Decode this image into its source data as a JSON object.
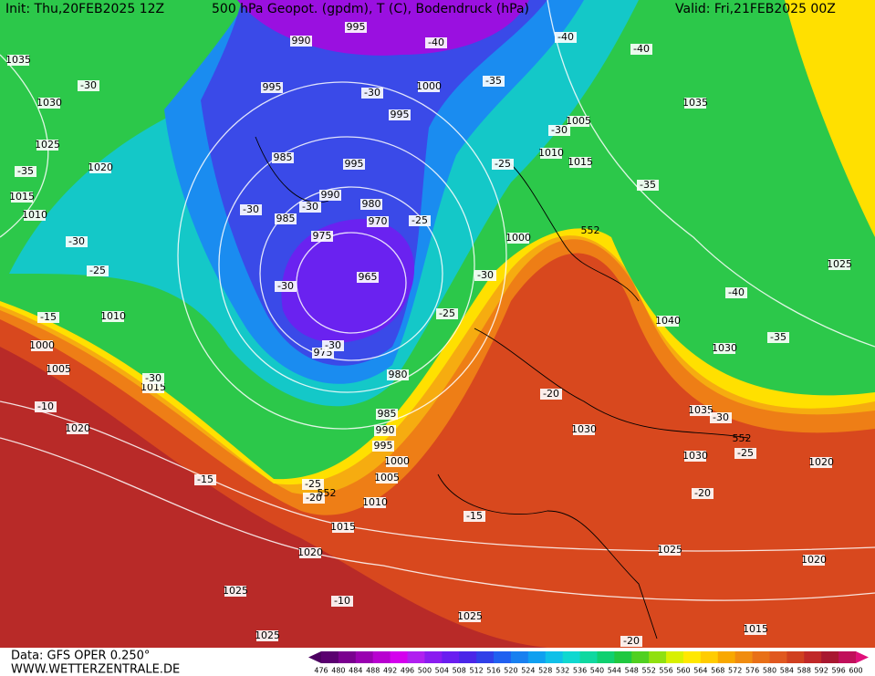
{
  "header": {
    "init": "Init: Thu,20FEB2025 12Z",
    "title": "500 hPa Geopot. (gpdm), T (C), Bodendruck (hPa)",
    "valid": "Valid: Fri,21FEB2025 00Z"
  },
  "footer": {
    "data": "Data: GFS OPER 0.250°",
    "site": "WWW.WETTERZENTRALE.DE"
  },
  "colorbar": {
    "ticks": [
      476,
      480,
      484,
      488,
      492,
      496,
      500,
      504,
      508,
      512,
      516,
      520,
      524,
      528,
      532,
      536,
      540,
      544,
      548,
      552,
      556,
      560,
      564,
      568,
      572,
      576,
      580,
      584,
      588,
      592,
      596,
      600
    ],
    "colors": [
      "#5a0070",
      "#7a008f",
      "#9900b0",
      "#b800d0",
      "#d400ee",
      "#b020f0",
      "#8a1cf0",
      "#6a1ef0",
      "#4a26e8",
      "#3040e8",
      "#2060f0",
      "#1880f0",
      "#10a0f0",
      "#10c0e8",
      "#10d8d0",
      "#10d8a0",
      "#10d070",
      "#20c840",
      "#50d020",
      "#90e010",
      "#d8f000",
      "#ffe800",
      "#ffcc00",
      "#f8a800",
      "#f08c10",
      "#e87018",
      "#e05820",
      "#d04020",
      "#c02828",
      "#a81830",
      "#c0105a"
    ],
    "under_color": "#4b0060",
    "over_color": "#e0107a"
  },
  "isobar_labels": [
    "990",
    "995",
    "1035",
    "995",
    "1000",
    "1030",
    "995",
    "1025",
    "1005",
    "1035",
    "985",
    "995",
    "1010",
    "1015",
    "1020",
    "990",
    "980",
    "1015",
    "1010",
    "985",
    "970",
    "975",
    "1000",
    "1025",
    "965",
    "1010",
    "1040",
    "1000",
    "975",
    "1030",
    "1005",
    "980",
    "1015",
    "985",
    "1035",
    "1020",
    "990",
    "1030",
    "995",
    "1030",
    "1000",
    "1020",
    "1005",
    "1010",
    "1015",
    "1020",
    "1025",
    "1020",
    "1025",
    "1025",
    "1015",
    "1025"
  ],
  "temperature_labels": [
    "-40",
    "-40",
    "-40",
    "-30",
    "-30",
    "-35",
    "-30",
    "-25",
    "-35",
    "-35",
    "-30",
    "-30",
    "-25",
    "-30",
    "-25",
    "-30",
    "-30",
    "-40",
    "-25",
    "-35",
    "-15",
    "-30",
    "-30",
    "-10",
    "-20",
    "-30",
    "-25",
    "-15",
    "-25",
    "-20",
    "-15",
    "-20",
    "-10",
    "-20"
  ],
  "geopotential_labels": [
    "552",
    "552",
    "552"
  ]
}
